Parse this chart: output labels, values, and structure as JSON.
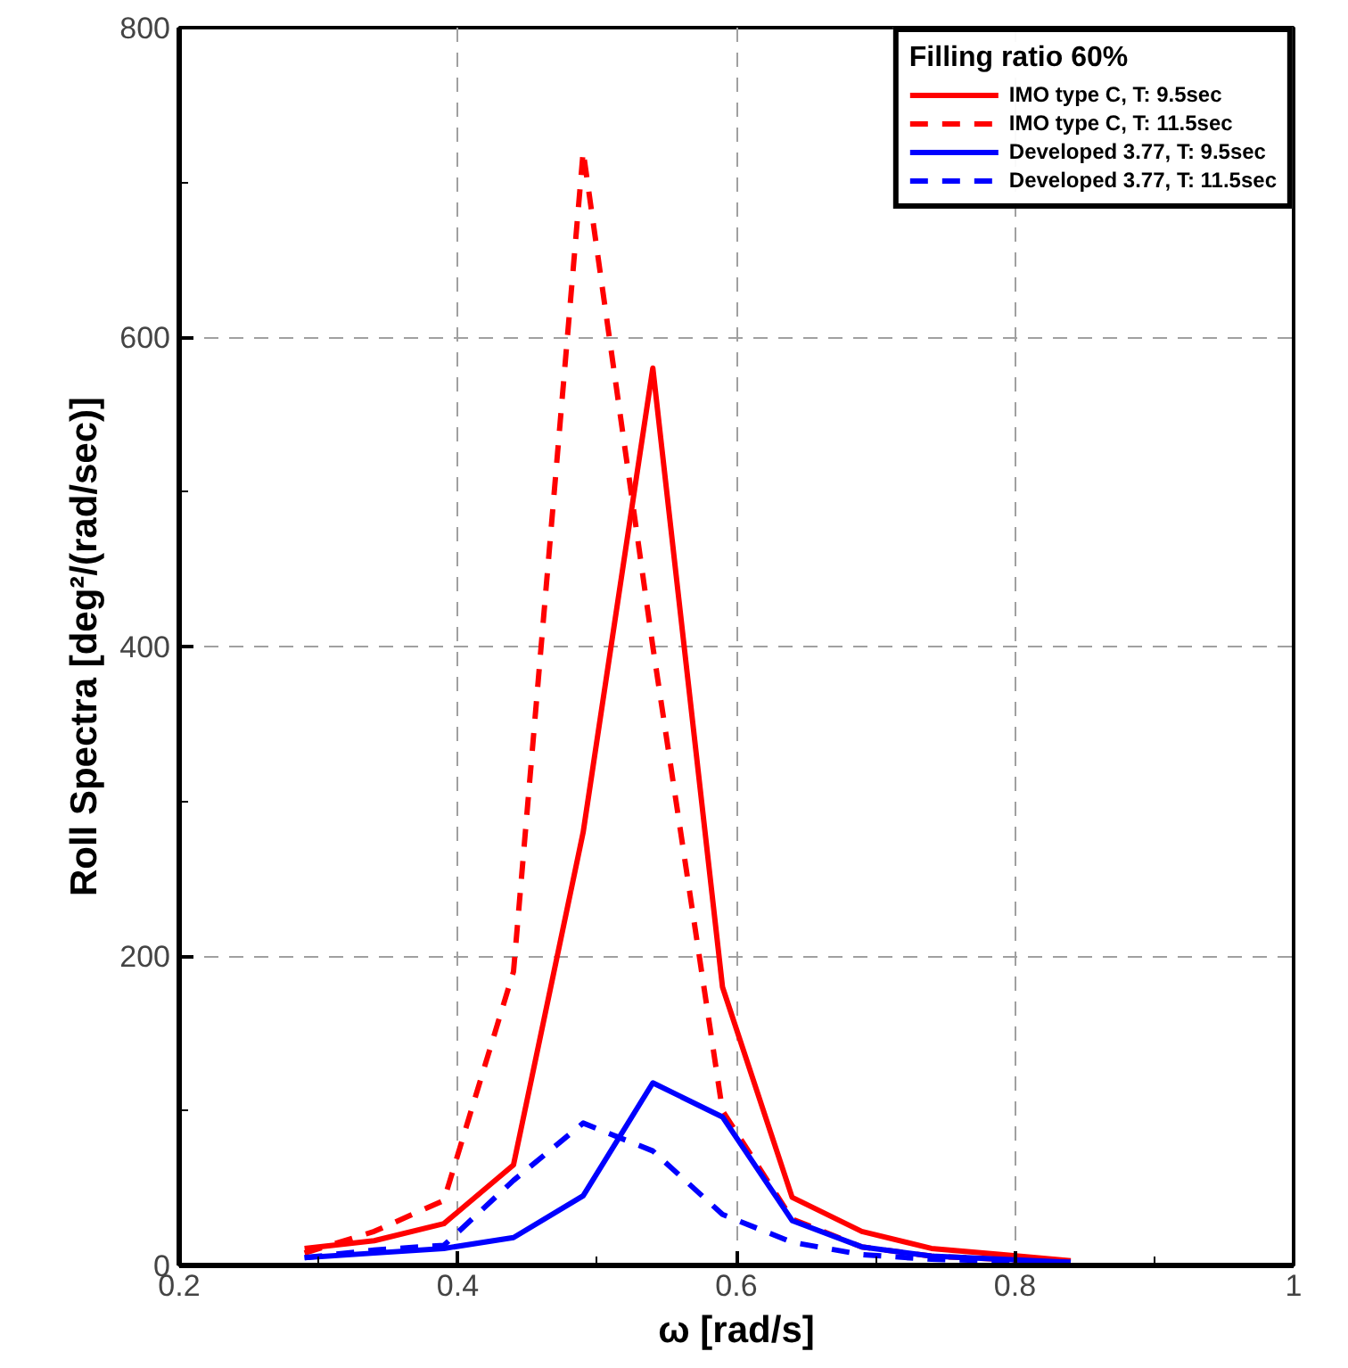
{
  "chart_data": {
    "type": "line",
    "xlabel": "ω [rad/s]",
    "ylabel": "Roll Spectra [deg²/(rad/sec)]",
    "legend_title": "Filling ratio 60%",
    "x": [
      0.29,
      0.34,
      0.39,
      0.44,
      0.49,
      0.54,
      0.59,
      0.64,
      0.69,
      0.74,
      0.79,
      0.84
    ],
    "series": [
      {
        "name": "IMO type C, T: 9.5sec",
        "color": "#ff0000",
        "line_style": "solid",
        "values": [
          11,
          16,
          27,
          65,
          280,
          580,
          180,
          44,
          22,
          11,
          7,
          3
        ]
      },
      {
        "name": "IMO type C, T: 11.5sec",
        "color": "#ff0000",
        "line_style": "dashed",
        "values": [
          8,
          22,
          42,
          190,
          720,
          400,
          100,
          30,
          12,
          6,
          4,
          2
        ]
      },
      {
        "name": "Developed 3.77, T: 9.5sec",
        "color": "#0000ff",
        "line_style": "solid",
        "values": [
          5,
          8,
          11,
          18,
          45,
          118,
          96,
          29,
          12,
          6,
          4,
          2
        ]
      },
      {
        "name": "Developed 3.77, T: 11.5sec",
        "color": "#0000ff",
        "line_style": "dashed",
        "values": [
          5,
          10,
          13,
          55,
          92,
          74,
          33,
          15,
          7,
          4,
          3,
          2
        ]
      }
    ],
    "xlim": [
      0.2,
      1.0
    ],
    "ylim": [
      0,
      800
    ],
    "xticks": [
      0.2,
      0.4,
      0.6,
      0.8,
      {
        "value": 1.0,
        "label": "1"
      }
    ],
    "yticks": [
      0,
      200,
      400,
      600,
      800
    ],
    "grid": true,
    "legend": "top right",
    "marker": "none"
  }
}
